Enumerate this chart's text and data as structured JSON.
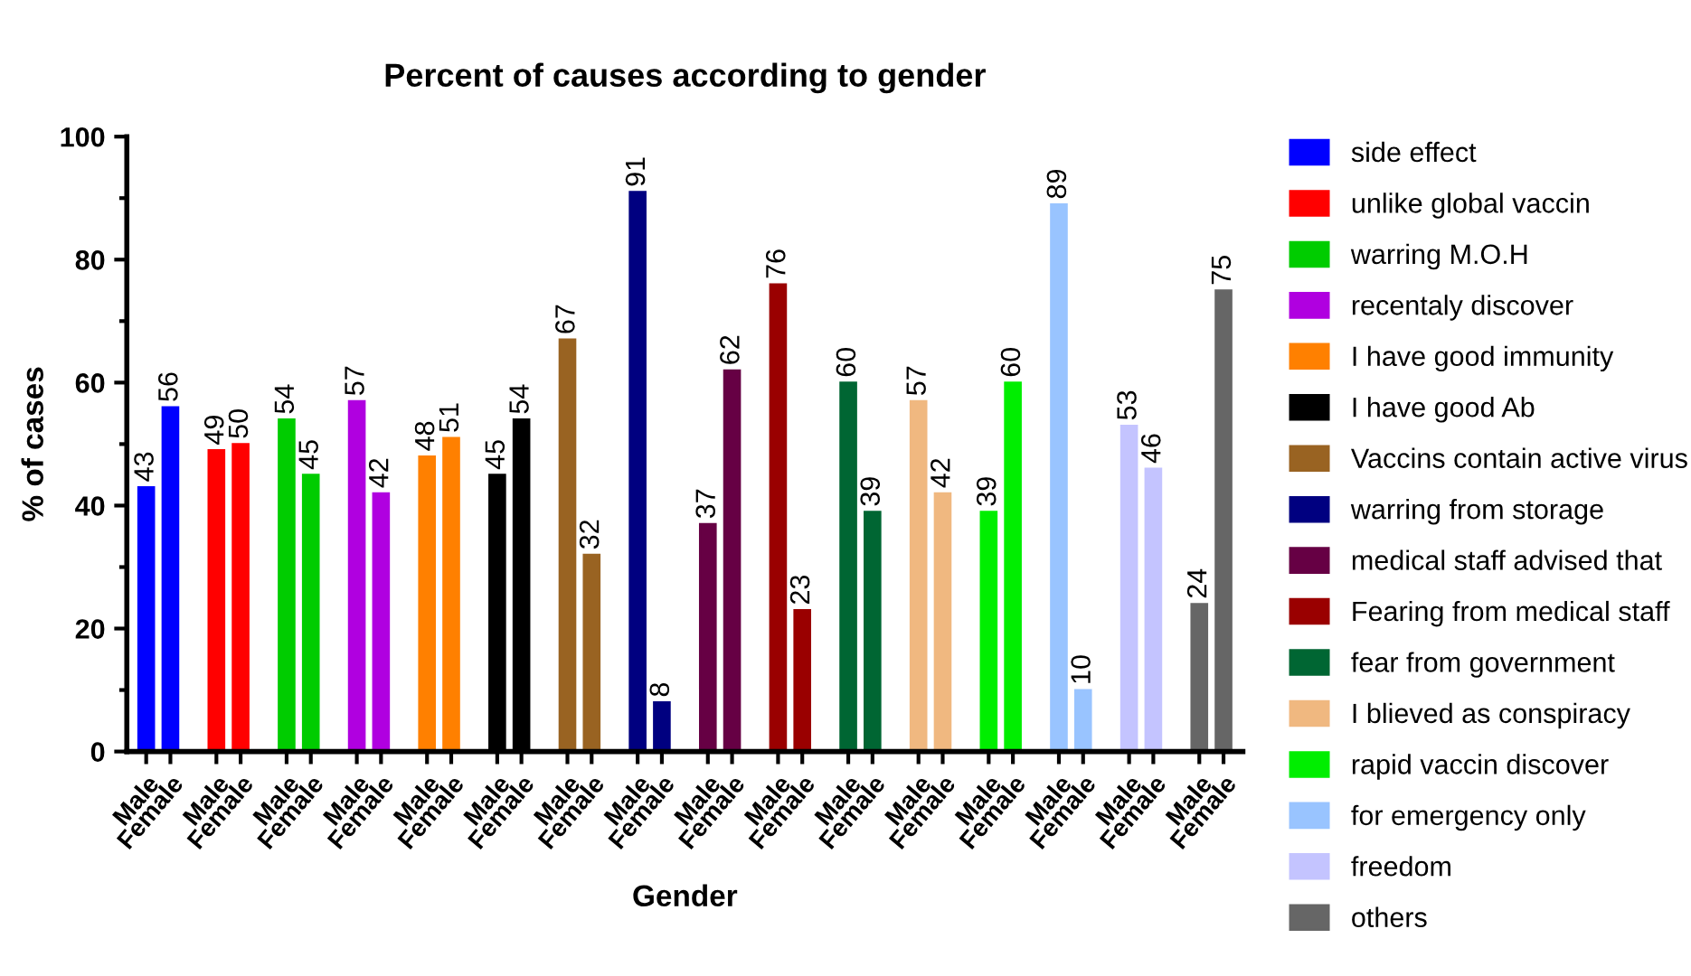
{
  "chart_data": {
    "type": "bar",
    "title": "Percent of causes according to gender",
    "xlabel": "Gender",
    "ylabel": "% of cases",
    "categories": [
      "Male",
      "Female",
      "Male",
      "Female",
      "Male",
      "Female",
      "Male",
      "Female",
      "Male",
      "Female",
      "Male",
      "Female",
      "Male",
      "Female",
      "Male",
      "Female",
      "Male",
      "Female",
      "Male",
      "Female",
      "Male",
      "Female",
      "Male",
      "Female",
      "Male",
      "Female",
      "Male",
      "Female",
      "Male",
      "Female",
      "Male",
      "Female"
    ],
    "series": [
      {
        "name": "side effect",
        "color": "#0000ff",
        "values": [
          43,
          56,
          null,
          null,
          null,
          null,
          null,
          null,
          null,
          null,
          null,
          null,
          null,
          null,
          null,
          null,
          null,
          null,
          null,
          null,
          null,
          null,
          null,
          null,
          null,
          null,
          null,
          null,
          null,
          null,
          null,
          null
        ]
      },
      {
        "name": "unlike global vaccin",
        "color": "#ff0000",
        "values": [
          null,
          null,
          49,
          50,
          null,
          null,
          null,
          null,
          null,
          null,
          null,
          null,
          null,
          null,
          null,
          null,
          null,
          null,
          null,
          null,
          null,
          null,
          null,
          null,
          null,
          null,
          null,
          null,
          null,
          null,
          null,
          null
        ]
      },
      {
        "name": "warring M.O.H",
        "color": "#00cc00",
        "values": [
          null,
          null,
          null,
          null,
          54,
          45,
          null,
          null,
          null,
          null,
          null,
          null,
          null,
          null,
          null,
          null,
          null,
          null,
          null,
          null,
          null,
          null,
          null,
          null,
          null,
          null,
          null,
          null,
          null,
          null,
          null,
          null
        ]
      },
      {
        "name": "recentaly discover",
        "color": "#b000e0",
        "values": [
          null,
          null,
          null,
          null,
          null,
          null,
          57,
          42,
          null,
          null,
          null,
          null,
          null,
          null,
          null,
          null,
          null,
          null,
          null,
          null,
          null,
          null,
          null,
          null,
          null,
          null,
          null,
          null,
          null,
          null,
          null,
          null
        ]
      },
      {
        "name": "I have good immunity",
        "color": "#ff8000",
        "values": [
          null,
          null,
          null,
          null,
          null,
          null,
          null,
          null,
          48,
          51,
          null,
          null,
          null,
          null,
          null,
          null,
          null,
          null,
          null,
          null,
          null,
          null,
          null,
          null,
          null,
          null,
          null,
          null,
          null,
          null,
          null,
          null
        ]
      },
      {
        "name": "I have good Ab",
        "color": "#000000",
        "values": [
          null,
          null,
          null,
          null,
          null,
          null,
          null,
          null,
          null,
          null,
          45,
          54,
          null,
          null,
          null,
          null,
          null,
          null,
          null,
          null,
          null,
          null,
          null,
          null,
          null,
          null,
          null,
          null,
          null,
          null,
          null,
          null
        ]
      },
      {
        "name": "Vaccins contain active virus",
        "color": "#996322",
        "values": [
          null,
          null,
          null,
          null,
          null,
          null,
          null,
          null,
          null,
          null,
          null,
          null,
          67,
          32,
          null,
          null,
          null,
          null,
          null,
          null,
          null,
          null,
          null,
          null,
          null,
          null,
          null,
          null,
          null,
          null,
          null,
          null
        ]
      },
      {
        "name": "warring from storage",
        "color": "#000080",
        "values": [
          null,
          null,
          null,
          null,
          null,
          null,
          null,
          null,
          null,
          null,
          null,
          null,
          null,
          null,
          91,
          8,
          null,
          null,
          null,
          null,
          null,
          null,
          null,
          null,
          null,
          null,
          null,
          null,
          null,
          null,
          null,
          null
        ]
      },
      {
        "name": "medical staff advised that",
        "color": "#660044",
        "values": [
          null,
          null,
          null,
          null,
          null,
          null,
          null,
          null,
          null,
          null,
          null,
          null,
          null,
          null,
          null,
          null,
          37,
          62,
          null,
          null,
          null,
          null,
          null,
          null,
          null,
          null,
          null,
          null,
          null,
          null,
          null,
          null
        ]
      },
      {
        "name": "Fearing from medical staff",
        "color": "#9a0000",
        "values": [
          null,
          null,
          null,
          null,
          null,
          null,
          null,
          null,
          null,
          null,
          null,
          null,
          null,
          null,
          null,
          null,
          null,
          null,
          76,
          23,
          null,
          null,
          null,
          null,
          null,
          null,
          null,
          null,
          null,
          null,
          null,
          null
        ]
      },
      {
        "name": "fear from government",
        "color": "#006633",
        "values": [
          null,
          null,
          null,
          null,
          null,
          null,
          null,
          null,
          null,
          null,
          null,
          null,
          null,
          null,
          null,
          null,
          null,
          null,
          null,
          null,
          60,
          39,
          null,
          null,
          null,
          null,
          null,
          null,
          null,
          null,
          null,
          null
        ]
      },
      {
        "name": "I blieved as conspiracy",
        "color": "#f0b880",
        "values": [
          null,
          null,
          null,
          null,
          null,
          null,
          null,
          null,
          null,
          null,
          null,
          null,
          null,
          null,
          null,
          null,
          null,
          null,
          null,
          null,
          null,
          null,
          57,
          42,
          null,
          null,
          null,
          null,
          null,
          null,
          null,
          null
        ]
      },
      {
        "name": "rapid vaccin discover",
        "color": "#00ee00",
        "values": [
          null,
          null,
          null,
          null,
          null,
          null,
          null,
          null,
          null,
          null,
          null,
          null,
          null,
          null,
          null,
          null,
          null,
          null,
          null,
          null,
          null,
          null,
          null,
          null,
          39,
          60,
          null,
          null,
          null,
          null,
          null,
          null
        ]
      },
      {
        "name": "for emergency only",
        "color": "#99c4ff",
        "values": [
          null,
          null,
          null,
          null,
          null,
          null,
          null,
          null,
          null,
          null,
          null,
          null,
          null,
          null,
          null,
          null,
          null,
          null,
          null,
          null,
          null,
          null,
          null,
          null,
          null,
          null,
          89,
          10,
          null,
          null,
          null,
          null
        ]
      },
      {
        "name": "freedom",
        "color": "#c4c4ff",
        "values": [
          null,
          null,
          null,
          null,
          null,
          null,
          null,
          null,
          null,
          null,
          null,
          null,
          null,
          null,
          null,
          null,
          null,
          null,
          null,
          null,
          null,
          null,
          null,
          null,
          null,
          null,
          null,
          null,
          53,
          46,
          null,
          null
        ]
      },
      {
        "name": "others",
        "color": "#666666",
        "values": [
          null,
          null,
          null,
          null,
          null,
          null,
          null,
          null,
          null,
          null,
          null,
          null,
          null,
          null,
          null,
          null,
          null,
          null,
          null,
          null,
          null,
          null,
          null,
          null,
          null,
          null,
          null,
          null,
          null,
          null,
          24,
          75
        ]
      }
    ],
    "ylim": [
      0,
      100
    ],
    "yticks": [
      0,
      20,
      40,
      60,
      80,
      100
    ],
    "data_labels": true,
    "legend": "right",
    "grid": false
  }
}
